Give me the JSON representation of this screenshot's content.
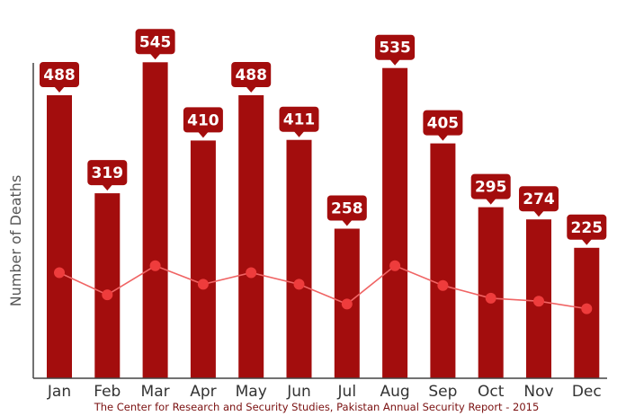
{
  "chart_data": {
    "type": "bar",
    "categories": [
      "Jan",
      "Feb",
      "Mar",
      "Apr",
      "May",
      "Jun",
      "Jul",
      "Aug",
      "Sep",
      "Oct",
      "Nov",
      "Dec"
    ],
    "series": [
      {
        "values": [
          488,
          319,
          545,
          410,
          488,
          411,
          258,
          535,
          405,
          295,
          274,
          225
        ]
      }
    ],
    "line_overlay": {
      "values": [
        182,
        144,
        194,
        162,
        182,
        162,
        128,
        194,
        160,
        138,
        133,
        120
      ]
    },
    "ylabel": "Number of Deaths",
    "xlabel": "",
    "ylim": [
      0,
      600
    ],
    "grid": false,
    "colors": {
      "bar": "#a30d0d",
      "label_bg": "#a30d0d",
      "label_text": "#ffffff",
      "line": "#f06464",
      "marker": "#ee3c3c",
      "axis": "#444444"
    }
  },
  "source_note": "The Center for Research and Security Studies, Pakistan Annual Security Report - 2015"
}
